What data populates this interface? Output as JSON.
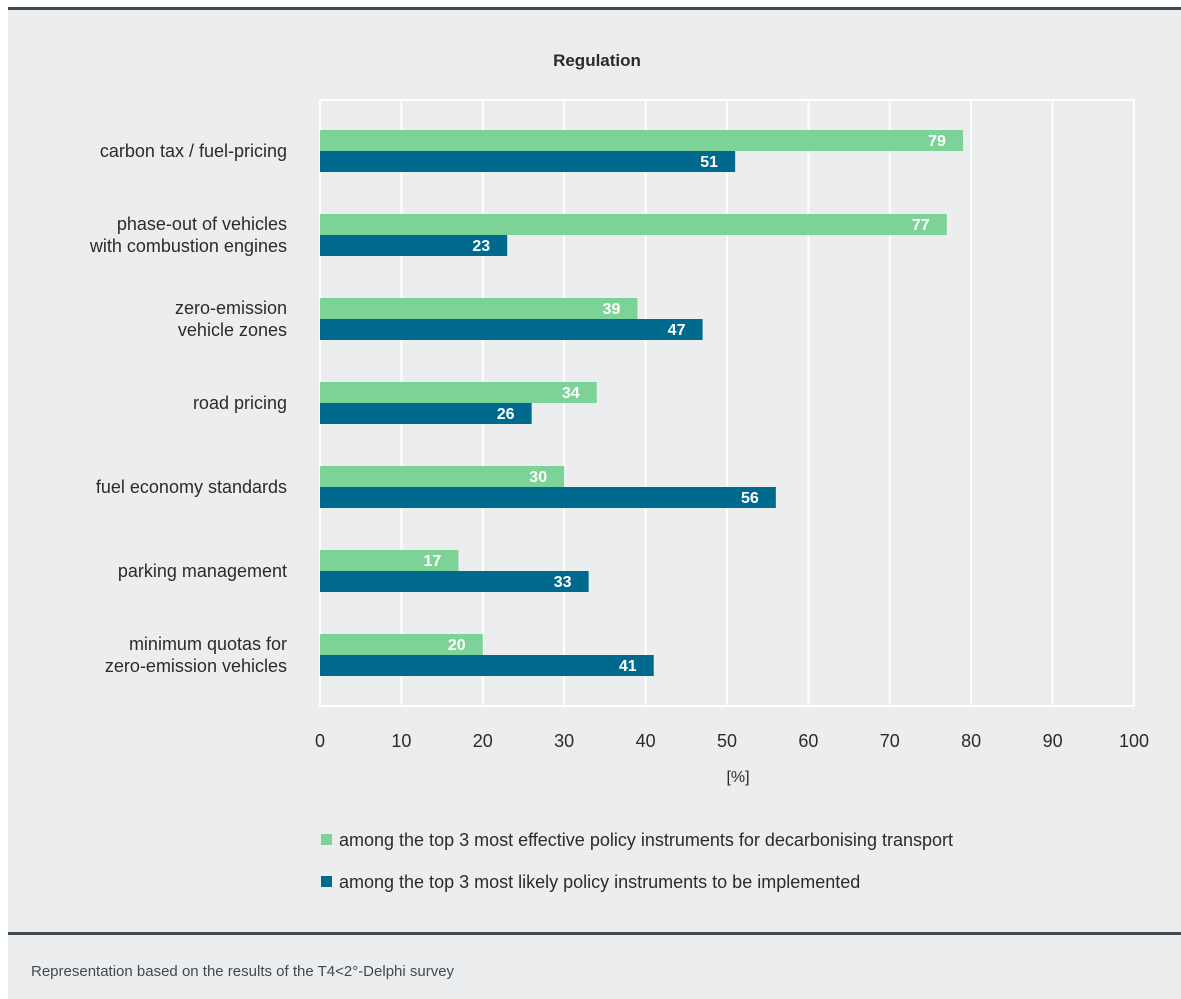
{
  "chart_data": {
    "type": "bar",
    "orientation": "horizontal",
    "title": "Regulation",
    "xlabel": "[%]",
    "xlim": [
      0,
      100
    ],
    "xticks": [
      0,
      10,
      20,
      30,
      40,
      50,
      60,
      70,
      80,
      90,
      100
    ],
    "grid": true,
    "legend_position": "bottom",
    "categories": [
      [
        "carbon tax / fuel-pricing"
      ],
      [
        "phase-out of vehicles",
        "with combustion engines"
      ],
      [
        "zero-emission",
        "vehicle zones"
      ],
      [
        "road pricing"
      ],
      [
        "fuel economy standards"
      ],
      [
        "parking management"
      ],
      [
        "minimum quotas for",
        "zero-emission vehicles"
      ]
    ],
    "series": [
      {
        "name": "among the top 3 most effective policy instruments for decarbonising transport",
        "color": "#7dd397",
        "values": [
          79,
          77,
          39,
          34,
          30,
          17,
          20
        ]
      },
      {
        "name": "among the top 3 most likely  policy instruments to be implemented",
        "color": "#006a8e",
        "values": [
          51,
          23,
          47,
          26,
          56,
          33,
          41
        ]
      }
    ]
  },
  "footnote": "Representation based on the results of the T4<2°-Delphi survey",
  "colors": {
    "panel_background": "#ebedee",
    "rule": "#3f4a52"
  }
}
